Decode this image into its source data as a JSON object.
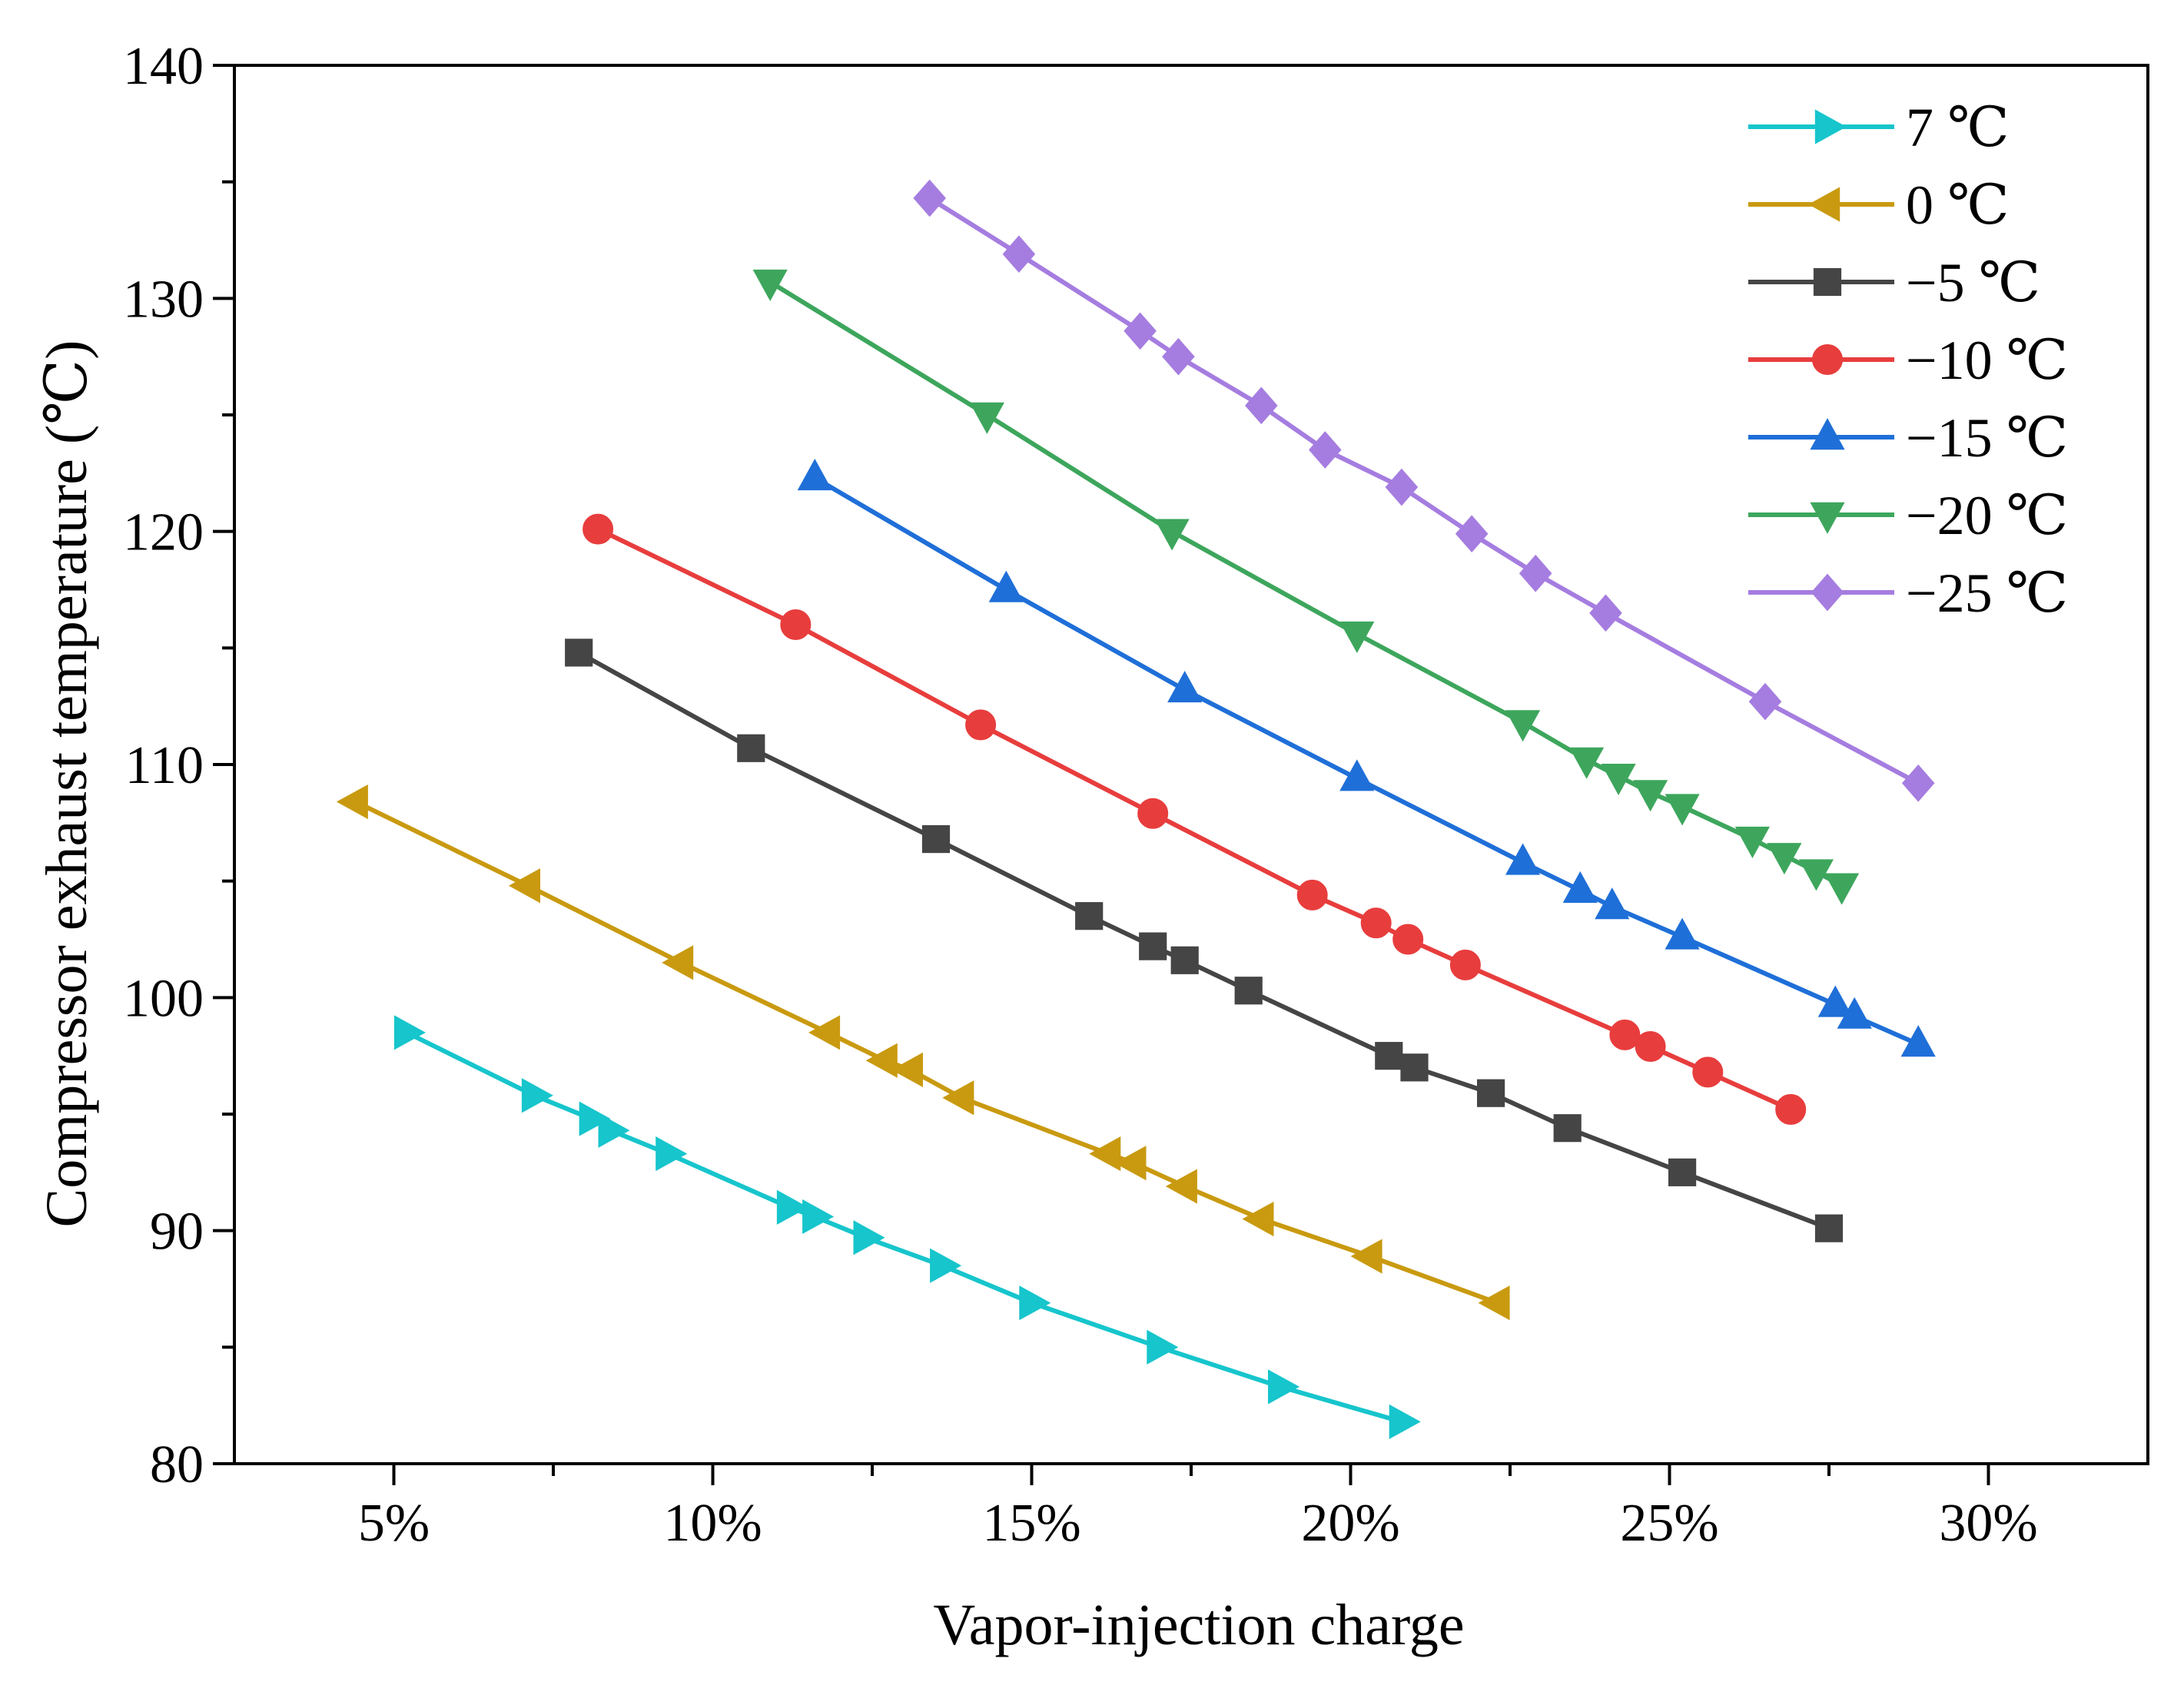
{
  "chart_data": {
    "type": "line",
    "title": "",
    "xlabel": "Vapor-injection charge",
    "ylabel": "Compressor exhaust temperature (℃)",
    "xlim": [
      2.5,
      32.5
    ],
    "ylim": [
      80,
      140
    ],
    "x_ticks": [
      {
        "value": 5,
        "label": "5%"
      },
      {
        "value": 10,
        "label": "10%"
      },
      {
        "value": 15,
        "label": "15%"
      },
      {
        "value": 20,
        "label": "20%"
      },
      {
        "value": 25,
        "label": "25%"
      },
      {
        "value": 30,
        "label": "30%"
      }
    ],
    "x_minor_ticks": [
      7.5,
      12.5,
      17.5,
      22.5,
      27.5
    ],
    "y_ticks": [
      {
        "value": 80,
        "label": "80"
      },
      {
        "value": 90,
        "label": "90"
      },
      {
        "value": 100,
        "label": "100"
      },
      {
        "value": 110,
        "label": "110"
      },
      {
        "value": 120,
        "label": "120"
      },
      {
        "value": 130,
        "label": "130"
      },
      {
        "value": 140,
        "label": "140"
      }
    ],
    "y_minor_ticks": [
      85,
      95,
      105,
      115,
      125,
      135
    ],
    "grid": false,
    "legend_position": "top-right",
    "series": [
      {
        "name": "7 ℃",
        "color": "#17c5cc",
        "marker": "triangle-right",
        "x": [
          5.2,
          7.2,
          8.1,
          8.4,
          9.3,
          11.2,
          11.6,
          12.4,
          13.6,
          15.0,
          17.0,
          18.9,
          20.8
        ],
        "y": [
          98.5,
          95.8,
          94.8,
          94.3,
          93.3,
          91.0,
          90.6,
          89.7,
          88.5,
          86.9,
          85.0,
          83.3,
          81.8
        ]
      },
      {
        "name": "0 ℃",
        "color": "#c99a10",
        "marker": "triangle-left",
        "x": [
          4.4,
          7.1,
          9.5,
          11.8,
          12.7,
          13.1,
          13.9,
          16.2,
          16.6,
          17.4,
          18.6,
          20.3,
          22.3
        ],
        "y": [
          108.4,
          104.8,
          101.5,
          98.5,
          97.3,
          96.9,
          95.7,
          93.3,
          92.9,
          91.9,
          90.5,
          88.9,
          86.9
        ]
      },
      {
        "name": "−5 ℃",
        "color": "#454545",
        "marker": "square",
        "x": [
          7.9,
          10.6,
          13.5,
          15.9,
          16.9,
          17.4,
          18.4,
          20.6,
          21.0,
          22.2,
          23.4,
          25.2,
          27.5
        ],
        "y": [
          114.8,
          110.7,
          106.8,
          103.5,
          102.2,
          101.6,
          100.3,
          97.5,
          97.0,
          95.9,
          94.4,
          92.5,
          90.1
        ]
      },
      {
        "name": "−10 ℃",
        "color": "#e83d3d",
        "marker": "circle",
        "x": [
          8.2,
          11.3,
          14.2,
          16.9,
          19.4,
          20.4,
          20.9,
          21.8,
          24.3,
          24.7,
          25.6,
          26.9
        ],
        "y": [
          120.1,
          116.0,
          111.7,
          107.9,
          104.4,
          103.2,
          102.5,
          101.4,
          98.4,
          97.9,
          96.8,
          95.2
        ]
      },
      {
        "name": "−15 ℃",
        "color": "#1f6fd8",
        "marker": "triangle-up",
        "x": [
          11.6,
          14.6,
          17.4,
          20.1,
          22.7,
          23.6,
          24.1,
          25.2,
          27.6,
          27.9,
          28.9
        ],
        "y": [
          122.3,
          117.5,
          113.2,
          109.4,
          105.8,
          104.6,
          103.9,
          102.6,
          99.7,
          99.2,
          98.0
        ]
      },
      {
        "name": "−20 ℃",
        "color": "#3da65c",
        "marker": "triangle-down",
        "x": [
          10.9,
          14.3,
          17.2,
          20.1,
          22.7,
          23.7,
          24.2,
          24.7,
          25.2,
          26.3,
          26.8,
          27.3,
          27.7
        ],
        "y": [
          130.7,
          125.0,
          120.0,
          115.6,
          111.8,
          110.2,
          109.5,
          108.8,
          108.2,
          106.8,
          106.1,
          105.4,
          104.8
        ]
      },
      {
        "name": "−25 ℃",
        "color": "#a57de0",
        "marker": "diamond",
        "x": [
          13.4,
          14.8,
          16.7,
          17.3,
          18.6,
          19.6,
          20.8,
          21.9,
          22.9,
          24.0,
          26.5,
          28.9
        ],
        "y": [
          134.3,
          131.9,
          128.6,
          127.5,
          125.4,
          123.5,
          121.9,
          119.9,
          118.2,
          116.5,
          112.7,
          109.2
        ]
      }
    ]
  }
}
